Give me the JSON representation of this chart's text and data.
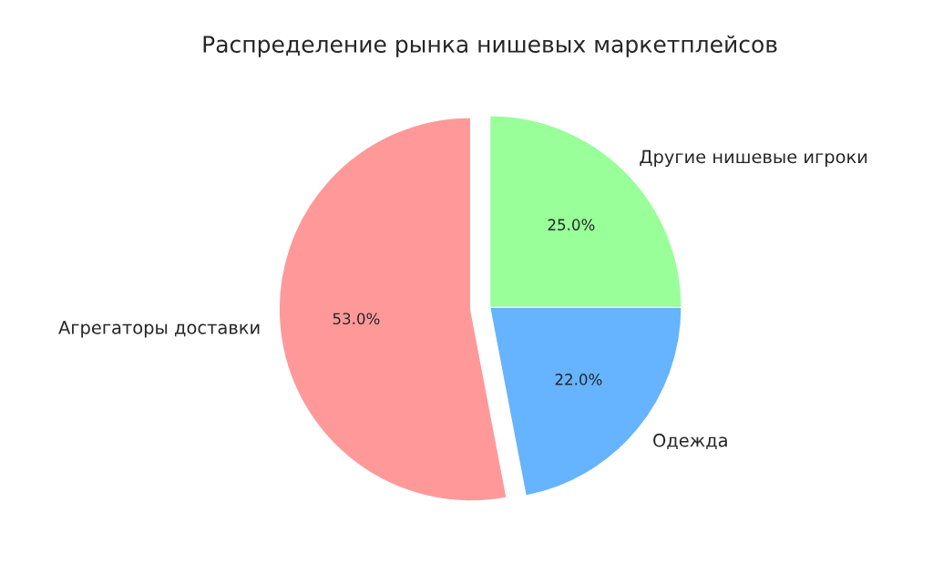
{
  "chart_data": {
    "type": "pie",
    "title": "Распределение рынка нишевых маркетплейсов",
    "categories": [
      "Агрегаторы доставки",
      "Одежда",
      "Другие нишевые игроки"
    ],
    "values": [
      53,
      22,
      25
    ],
    "colors": [
      "#ff9999",
      "#66b3ff",
      "#99ff99"
    ],
    "value_labels": [
      "53.0%",
      "22.0%",
      "25.0%"
    ],
    "legend": false
  }
}
